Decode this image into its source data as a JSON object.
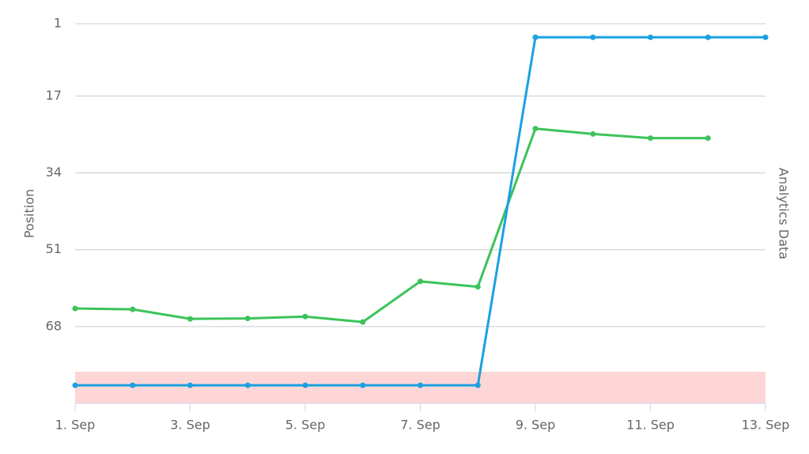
{
  "chart_data": {
    "type": "line",
    "y_axis_title": "Position",
    "y2_axis_title": "Analytics Data",
    "categories": [
      "1. Sep",
      null,
      "3. Sep",
      null,
      "5. Sep",
      null,
      "7. Sep",
      null,
      "9. Sep",
      null,
      "11. Sep",
      null,
      "13. Sep"
    ],
    "ylim": [
      1,
      85
    ],
    "reversed": true,
    "yticks": [
      1,
      17,
      34,
      51,
      68
    ],
    "grid": true,
    "plot_bands": [
      {
        "from": 78,
        "to": 85,
        "color": "#ffd6d6"
      }
    ],
    "series": [
      {
        "color": "#3cc35a",
        "values": [
          64,
          64.2,
          66.3,
          66.2,
          65.8,
          67,
          58,
          59.2,
          24.2,
          25.4,
          26.3,
          26.3,
          null
        ]
      },
      {
        "color": "#1ba0e2",
        "values": [
          81,
          81,
          81,
          81,
          81,
          81,
          81,
          81,
          4,
          4,
          4,
          4,
          4
        ]
      }
    ]
  }
}
